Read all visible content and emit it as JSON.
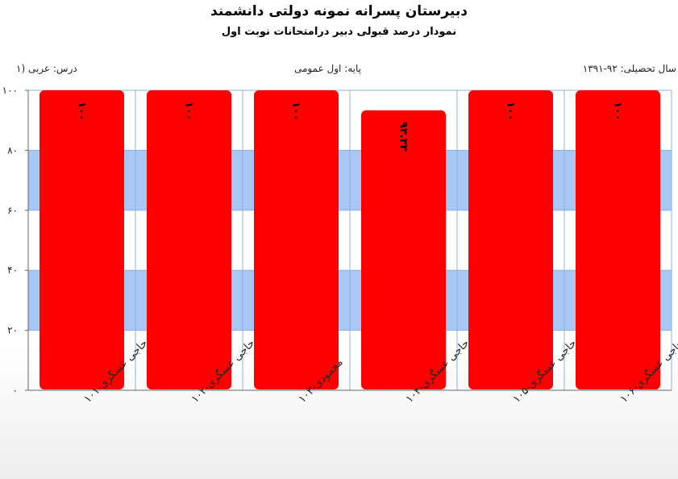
{
  "chart_data": {
    "type": "bar",
    "title": "دبیرستان پسرانه نمونه دولتی دانشمند",
    "subtitle": "نمودار درصد قبولی دبیر درامتحانات نوبت اول",
    "info": {
      "year": "سال تحصیلی: ۹۲-۱۳۹۱",
      "grade": "پایه: اول عمومی",
      "course": "درس: عربی (۱"
    },
    "categories": [
      "حاجی عسگری-۱۰۱",
      "حاجی عسگری-۱۰۲",
      "محمودی-۱۰۳",
      "حاجی عسگری-۱۰۴",
      "حاجی عسگری-۱۰۵",
      "حاجی عسگری-۱۰۶"
    ],
    "values": [
      100,
      100,
      100,
      93.33,
      100,
      100
    ],
    "value_labels": [
      "۱۰۰",
      "۱۰۰",
      "۱۰۰",
      "۹۳.۳۳",
      "۱۰۰",
      "۱۰۰"
    ],
    "ylim": [
      0,
      100
    ],
    "yticks": [
      0,
      20,
      40,
      60,
      80,
      100
    ],
    "ytick_labels": [
      "۰",
      "۲۰",
      "۴۰",
      "۶۰",
      "۸۰",
      "۱۰۰"
    ],
    "xlabel": "",
    "ylabel": "",
    "colors": {
      "bar": "#ff0000",
      "band": "#a7c8f5",
      "grid": "#8fb0e0",
      "axis": "#666666"
    },
    "grid": true,
    "legend": "none"
  }
}
